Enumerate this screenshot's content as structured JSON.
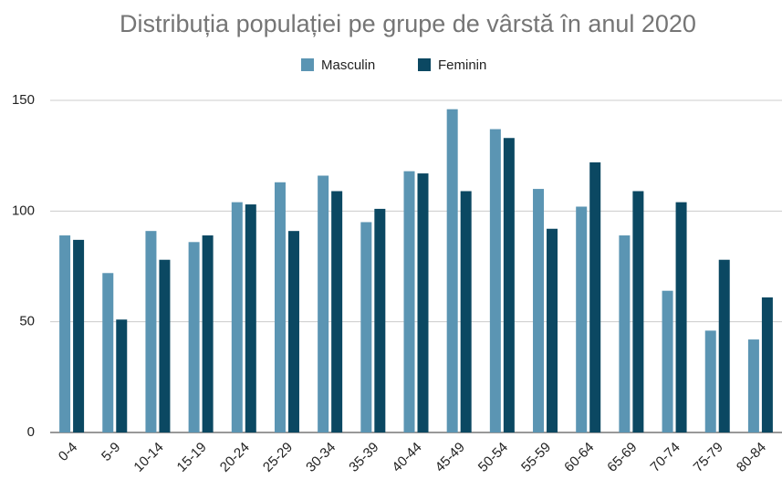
{
  "chart_data": {
    "type": "bar",
    "title": "Distribuția populației pe grupe de vârstă în anul 2020",
    "categories": [
      "0-4",
      "5-9",
      "10-14",
      "15-19",
      "20-24",
      "25-29",
      "30-34",
      "35-39",
      "40-44",
      "45-49",
      "50-54",
      "55-59",
      "60-64",
      "65-69",
      "70-74",
      "75-79",
      "80-84"
    ],
    "series": [
      {
        "name": "Masculin",
        "color": "#5b95b3",
        "values": [
          89,
          72,
          91,
          86,
          104,
          113,
          116,
          95,
          118,
          146,
          137,
          110,
          102,
          89,
          64,
          46,
          42
        ]
      },
      {
        "name": "Feminin",
        "color": "#0b4862",
        "values": [
          87,
          51,
          78,
          89,
          103,
          91,
          109,
          101,
          117,
          109,
          133,
          92,
          122,
          109,
          104,
          78,
          61
        ]
      }
    ],
    "ylim": [
      0,
      150
    ],
    "yticks": [
      0,
      50,
      100,
      150
    ],
    "grid": true,
    "legend": "top"
  }
}
